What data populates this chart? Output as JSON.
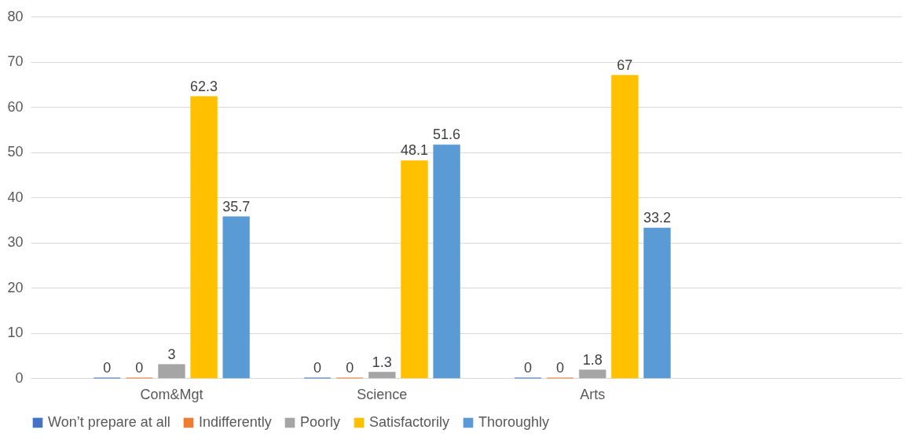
{
  "chart_data": {
    "type": "bar",
    "categories": [
      "Com&Mgt",
      "Science",
      "Arts",
      null
    ],
    "series": [
      {
        "name": "Won’t prepare at all",
        "color": "#4472c4",
        "values": [
          0,
          0,
          0,
          null
        ]
      },
      {
        "name": "Indifferently",
        "color": "#ed7d31",
        "values": [
          0,
          0,
          0,
          null
        ]
      },
      {
        "name": "Poorly",
        "color": "#a5a5a5",
        "values": [
          3,
          1.3,
          1.8,
          null
        ]
      },
      {
        "name": "Satisfactorily",
        "color": "#ffc000",
        "values": [
          62.3,
          48.1,
          67,
          null
        ]
      },
      {
        "name": "Thoroughly",
        "color": "#5b9bd5",
        "values": [
          35.7,
          51.6,
          33.2,
          null
        ]
      }
    ],
    "ylim": [
      0,
      80
    ],
    "yticks": [
      0,
      10,
      20,
      30,
      40,
      50,
      60,
      70,
      80
    ],
    "grid": "y",
    "legend": "bottom",
    "data_labels": true
  }
}
